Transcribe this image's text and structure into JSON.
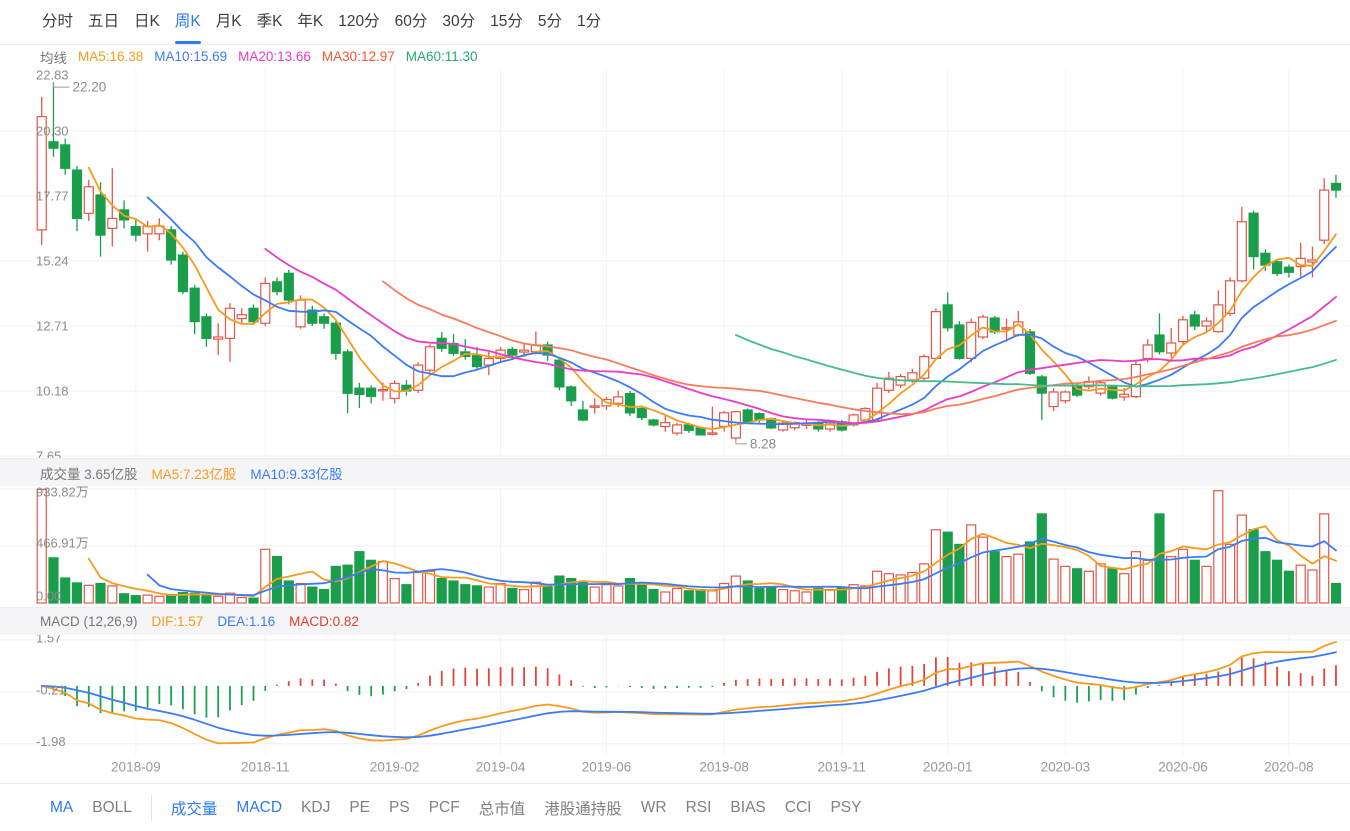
{
  "period_tabs": {
    "items": [
      "分时",
      "五日",
      "日K",
      "周K",
      "月K",
      "季K",
      "年K",
      "120分",
      "60分",
      "30分",
      "15分",
      "5分",
      "1分"
    ],
    "active_index": 3
  },
  "ma_legend": {
    "title": "均线",
    "items": [
      {
        "text": "MA5:16.38",
        "color": "#f79b1d"
      },
      {
        "text": "MA10:15.69",
        "color": "#3b7cf4"
      },
      {
        "text": "MA20:13.66",
        "color": "#e83dc9"
      },
      {
        "text": "MA30:12.97",
        "color": "#f4582f"
      },
      {
        "text": "MA60:11.30",
        "color": "#27ab6b"
      }
    ]
  },
  "volume_header": {
    "title": "成交量 3.65亿股",
    "items": [
      {
        "text": "MA5:7.23亿股",
        "color": "#f79b1d"
      },
      {
        "text": "MA10:9.33亿股",
        "color": "#3b7cf4"
      }
    ]
  },
  "macd_header": {
    "title": "MACD (12,26,9)",
    "items": [
      {
        "text": "DIF:1.57",
        "color": "#f79b1d"
      },
      {
        "text": "DEA:1.16",
        "color": "#3b7cf4"
      },
      {
        "text": "MACD:0.82",
        "color": "#e03e2d"
      }
    ]
  },
  "indicator_tabs": {
    "items": [
      {
        "label": "MA",
        "active": true,
        "divider_after": false
      },
      {
        "label": "BOLL",
        "active": false,
        "divider_after": true
      },
      {
        "label": "成交量",
        "active": true,
        "divider_after": false
      },
      {
        "label": "MACD",
        "active": true,
        "divider_after": false
      },
      {
        "label": "KDJ",
        "active": false,
        "divider_after": false
      },
      {
        "label": "PE",
        "active": false,
        "divider_after": false
      },
      {
        "label": "PS",
        "active": false,
        "divider_after": false
      },
      {
        "label": "PCF",
        "active": false,
        "divider_after": false
      },
      {
        "label": "总市值",
        "active": false,
        "divider_after": false
      },
      {
        "label": "港股通持股",
        "active": false,
        "divider_after": false
      },
      {
        "label": "WR",
        "active": false,
        "divider_after": false
      },
      {
        "label": "RSI",
        "active": false,
        "divider_after": false
      },
      {
        "label": "BIAS",
        "active": false,
        "divider_after": false
      },
      {
        "label": "CCI",
        "active": false,
        "divider_after": false
      },
      {
        "label": "PSY",
        "active": false,
        "divider_after": false
      }
    ]
  },
  "chart_data": {
    "type": "candlestick",
    "panes": [
      "price+MA",
      "volume+MA",
      "MACD(12,26,9)"
    ],
    "price_axis": {
      "top_label": "22.83",
      "gridline_values": [
        20.3,
        17.77,
        15.24,
        12.71,
        10.18,
        7.65
      ],
      "gridline_labels": [
        "20.30",
        "17.77",
        "15.24",
        "12.71",
        "10.18",
        "7.65"
      ],
      "max": 22.83,
      "min": 7.65
    },
    "high_annotation": {
      "text": "22.20",
      "candle_index": 1,
      "value": 22.2
    },
    "low_annotation": {
      "text": "8.28",
      "candle_index": 59,
      "value": 8.28
    },
    "volume_axis": {
      "labels": [
        "933.82万",
        "466.91万",
        "0.00"
      ],
      "max": 933.82
    },
    "macd_axis": {
      "labels": [
        "1.57",
        "-0.21",
        "-1.98"
      ],
      "values": [
        1.57,
        -0.21,
        -1.98
      ]
    },
    "x_ticks": [
      {
        "label": "2018-09",
        "index": 8
      },
      {
        "label": "2018-11",
        "index": 19
      },
      {
        "label": "2019-02",
        "index": 30
      },
      {
        "label": "2019-04",
        "index": 39
      },
      {
        "label": "2019-06",
        "index": 48
      },
      {
        "label": "2019-08",
        "index": 58
      },
      {
        "label": "2019-11",
        "index": 68
      },
      {
        "label": "2020-01",
        "index": 77
      },
      {
        "label": "2020-03",
        "index": 87
      },
      {
        "label": "2020-06",
        "index": 97
      },
      {
        "label": "2020-08",
        "index": 106
      }
    ],
    "ma_periods": [
      5,
      10,
      20,
      30,
      60
    ],
    "ma_colors": [
      "#f79b1d",
      "#3b7cf4",
      "#e83dc9",
      "#f87c5c",
      "#44bd8a"
    ],
    "vol_ma_colors": [
      "#f79b1d",
      "#3b7cf4"
    ],
    "dif_color": "#f79b1d",
    "dea_color": "#3b7cf4",
    "up_color": "#e2584a",
    "down_color": "#1b9e4b",
    "macd_up_color": "#e2453c",
    "macd_down_color": "#1ba152",
    "grid_color": "#f0f0f2",
    "axis_text_color": "#8c8c8c",
    "candles_format": [
      "open",
      "high",
      "low",
      "close",
      "volume_wan"
    ],
    "candles": [
      [
        16.45,
        21.63,
        15.86,
        20.86,
        930
      ],
      [
        19.88,
        22.2,
        19.3,
        19.63,
        370
      ],
      [
        19.76,
        20.0,
        18.6,
        18.85,
        205
      ],
      [
        18.78,
        18.95,
        16.4,
        16.9,
        165
      ],
      [
        17.1,
        18.4,
        16.8,
        18.13,
        145
      ],
      [
        17.81,
        18.3,
        15.41,
        16.25,
        160
      ],
      [
        16.51,
        18.85,
        15.8,
        16.9,
        140
      ],
      [
        17.23,
        17.6,
        16.5,
        16.84,
        75
      ],
      [
        16.58,
        16.9,
        16.0,
        16.25,
        60
      ],
      [
        16.3,
        16.8,
        15.6,
        16.6,
        65
      ],
      [
        16.3,
        16.9,
        16.05,
        16.6,
        55
      ],
      [
        16.45,
        16.6,
        15.1,
        15.28,
        70
      ],
      [
        15.47,
        15.6,
        13.95,
        14.05,
        85
      ],
      [
        14.18,
        14.3,
        12.4,
        12.88,
        80
      ],
      [
        13.07,
        13.2,
        11.9,
        12.23,
        60
      ],
      [
        12.2,
        12.82,
        11.58,
        12.28,
        55
      ],
      [
        12.23,
        13.6,
        11.32,
        13.4,
        80
      ],
      [
        13.0,
        13.4,
        12.8,
        13.15,
        45
      ],
      [
        13.4,
        13.55,
        12.75,
        12.88,
        40
      ],
      [
        12.82,
        14.6,
        12.7,
        14.37,
        440
      ],
      [
        14.43,
        14.6,
        13.9,
        14.05,
        380
      ],
      [
        14.76,
        14.9,
        13.55,
        13.72,
        180
      ],
      [
        12.68,
        13.9,
        12.6,
        13.72,
        160
      ],
      [
        13.33,
        13.5,
        12.7,
        12.82,
        130
      ],
      [
        13.07,
        13.2,
        12.6,
        12.82,
        110
      ],
      [
        12.82,
        12.9,
        11.4,
        11.65,
        300
      ],
      [
        11.7,
        11.8,
        9.31,
        10.09,
        310
      ],
      [
        10.29,
        10.5,
        9.52,
        10.05,
        420
      ],
      [
        10.29,
        10.4,
        9.7,
        9.97,
        350
      ],
      [
        10.21,
        10.5,
        9.8,
        10.24,
        340
      ],
      [
        9.89,
        10.6,
        9.7,
        10.47,
        200
      ],
      [
        10.4,
        10.6,
        10.0,
        10.18,
        150
      ],
      [
        10.21,
        11.3,
        10.1,
        11.19,
        250
      ],
      [
        10.99,
        12.0,
        10.9,
        11.9,
        260
      ],
      [
        12.23,
        12.48,
        11.7,
        11.84,
        200
      ],
      [
        12.03,
        12.4,
        11.55,
        11.65,
        180
      ],
      [
        11.7,
        12.2,
        11.4,
        11.52,
        150
      ],
      [
        11.58,
        11.9,
        11.0,
        11.13,
        140
      ],
      [
        11.19,
        11.7,
        10.8,
        11.45,
        130
      ],
      [
        11.45,
        11.9,
        11.3,
        11.77,
        160
      ],
      [
        11.8,
        11.9,
        11.4,
        11.58,
        120
      ],
      [
        11.7,
        12.0,
        11.5,
        11.77,
        110
      ],
      [
        11.71,
        12.5,
        11.6,
        11.97,
        170
      ],
      [
        11.97,
        12.1,
        11.35,
        11.58,
        140
      ],
      [
        11.38,
        11.45,
        10.2,
        10.34,
        220
      ],
      [
        10.34,
        10.4,
        9.6,
        9.8,
        200
      ],
      [
        9.44,
        9.8,
        9.0,
        9.05,
        170
      ],
      [
        9.55,
        9.9,
        9.3,
        9.6,
        130
      ],
      [
        9.6,
        9.95,
        9.45,
        9.85,
        150
      ],
      [
        9.7,
        10.2,
        9.55,
        9.95,
        140
      ],
      [
        10.08,
        10.18,
        9.2,
        9.33,
        200
      ],
      [
        9.5,
        9.55,
        9.05,
        9.15,
        160
      ],
      [
        9.05,
        9.1,
        8.8,
        8.86,
        110
      ],
      [
        8.8,
        9.25,
        8.6,
        8.95,
        90
      ],
      [
        8.54,
        8.95,
        8.45,
        8.86,
        120
      ],
      [
        8.86,
        8.95,
        8.55,
        8.65,
        100
      ],
      [
        8.74,
        8.8,
        8.45,
        8.47,
        110
      ],
      [
        8.55,
        9.57,
        8.45,
        8.55,
        100
      ],
      [
        8.8,
        9.4,
        8.6,
        9.33,
        160
      ],
      [
        8.35,
        9.4,
        8.28,
        9.37,
        220
      ],
      [
        9.44,
        9.5,
        8.9,
        8.98,
        180
      ],
      [
        9.3,
        9.35,
        8.95,
        9.05,
        120
      ],
      [
        9.1,
        9.15,
        8.7,
        8.74,
        130
      ],
      [
        8.66,
        9.0,
        8.6,
        8.93,
        110
      ],
      [
        8.75,
        9.0,
        8.65,
        8.95,
        100
      ],
      [
        8.85,
        9.1,
        8.7,
        8.9,
        90
      ],
      [
        8.95,
        9.0,
        8.6,
        8.7,
        120
      ],
      [
        8.7,
        9.0,
        8.6,
        8.9,
        110
      ],
      [
        8.98,
        9.05,
        8.6,
        8.66,
        130
      ],
      [
        8.86,
        9.3,
        8.8,
        9.25,
        150
      ],
      [
        9.05,
        9.55,
        8.95,
        9.5,
        140
      ],
      [
        9.05,
        10.5,
        9.0,
        10.29,
        260
      ],
      [
        10.21,
        10.93,
        10.1,
        10.68,
        240
      ],
      [
        10.41,
        10.85,
        10.3,
        10.74,
        230
      ],
      [
        10.61,
        11.05,
        10.5,
        10.89,
        250
      ],
      [
        10.68,
        11.6,
        10.55,
        11.52,
        320
      ],
      [
        11.45,
        13.4,
        11.4,
        13.27,
        600
      ],
      [
        13.53,
        14.02,
        12.5,
        12.64,
        580
      ],
      [
        12.75,
        12.9,
        11.4,
        11.45,
        480
      ],
      [
        11.45,
        13.0,
        11.3,
        12.85,
        640
      ],
      [
        12.28,
        13.15,
        12.2,
        13.06,
        540
      ],
      [
        13.02,
        13.1,
        12.4,
        12.48,
        420
      ],
      [
        12.6,
        13.0,
        12.1,
        12.64,
        380
      ],
      [
        12.36,
        13.3,
        12.3,
        12.87,
        400
      ],
      [
        12.48,
        12.6,
        10.8,
        10.87,
        500
      ],
      [
        10.73,
        10.8,
        9.05,
        10.1,
        730
      ],
      [
        9.57,
        10.3,
        9.4,
        10.14,
        360
      ],
      [
        9.8,
        10.2,
        9.7,
        10.14,
        300
      ],
      [
        10.41,
        10.45,
        9.95,
        10.02,
        280
      ],
      [
        10.35,
        10.75,
        10.25,
        10.55,
        260
      ],
      [
        10.1,
        10.6,
        10.0,
        10.5,
        320
      ],
      [
        10.33,
        10.4,
        9.85,
        9.9,
        280
      ],
      [
        9.95,
        10.3,
        9.8,
        10.05,
        240
      ],
      [
        9.96,
        11.4,
        9.9,
        11.21,
        420
      ],
      [
        11.45,
        12.2,
        11.3,
        11.97,
        350
      ],
      [
        12.36,
        13.2,
        11.6,
        11.71,
        730
      ],
      [
        11.66,
        12.63,
        11.47,
        12.05,
        380
      ],
      [
        12.1,
        13.1,
        12.0,
        12.95,
        440
      ],
      [
        13.14,
        13.3,
        12.55,
        12.71,
        350
      ],
      [
        12.71,
        13.05,
        12.5,
        12.9,
        300
      ],
      [
        12.49,
        14.1,
        12.45,
        13.53,
        920
      ],
      [
        13.2,
        14.6,
        13.1,
        14.47,
        480
      ],
      [
        14.47,
        17.35,
        14.4,
        16.77,
        720
      ],
      [
        17.1,
        17.2,
        14.9,
        15.41,
        600
      ],
      [
        15.54,
        15.7,
        14.85,
        15.08,
        420
      ],
      [
        15.21,
        15.3,
        14.65,
        14.76,
        350
      ],
      [
        15.0,
        15.1,
        14.6,
        14.8,
        260
      ],
      [
        15.02,
        15.95,
        14.63,
        15.34,
        310
      ],
      [
        15.2,
        15.8,
        14.6,
        15.28,
        270
      ],
      [
        16.05,
        18.46,
        15.9,
        18.0,
        730
      ],
      [
        18.26,
        18.6,
        17.7,
        18.0,
        160
      ]
    ]
  }
}
